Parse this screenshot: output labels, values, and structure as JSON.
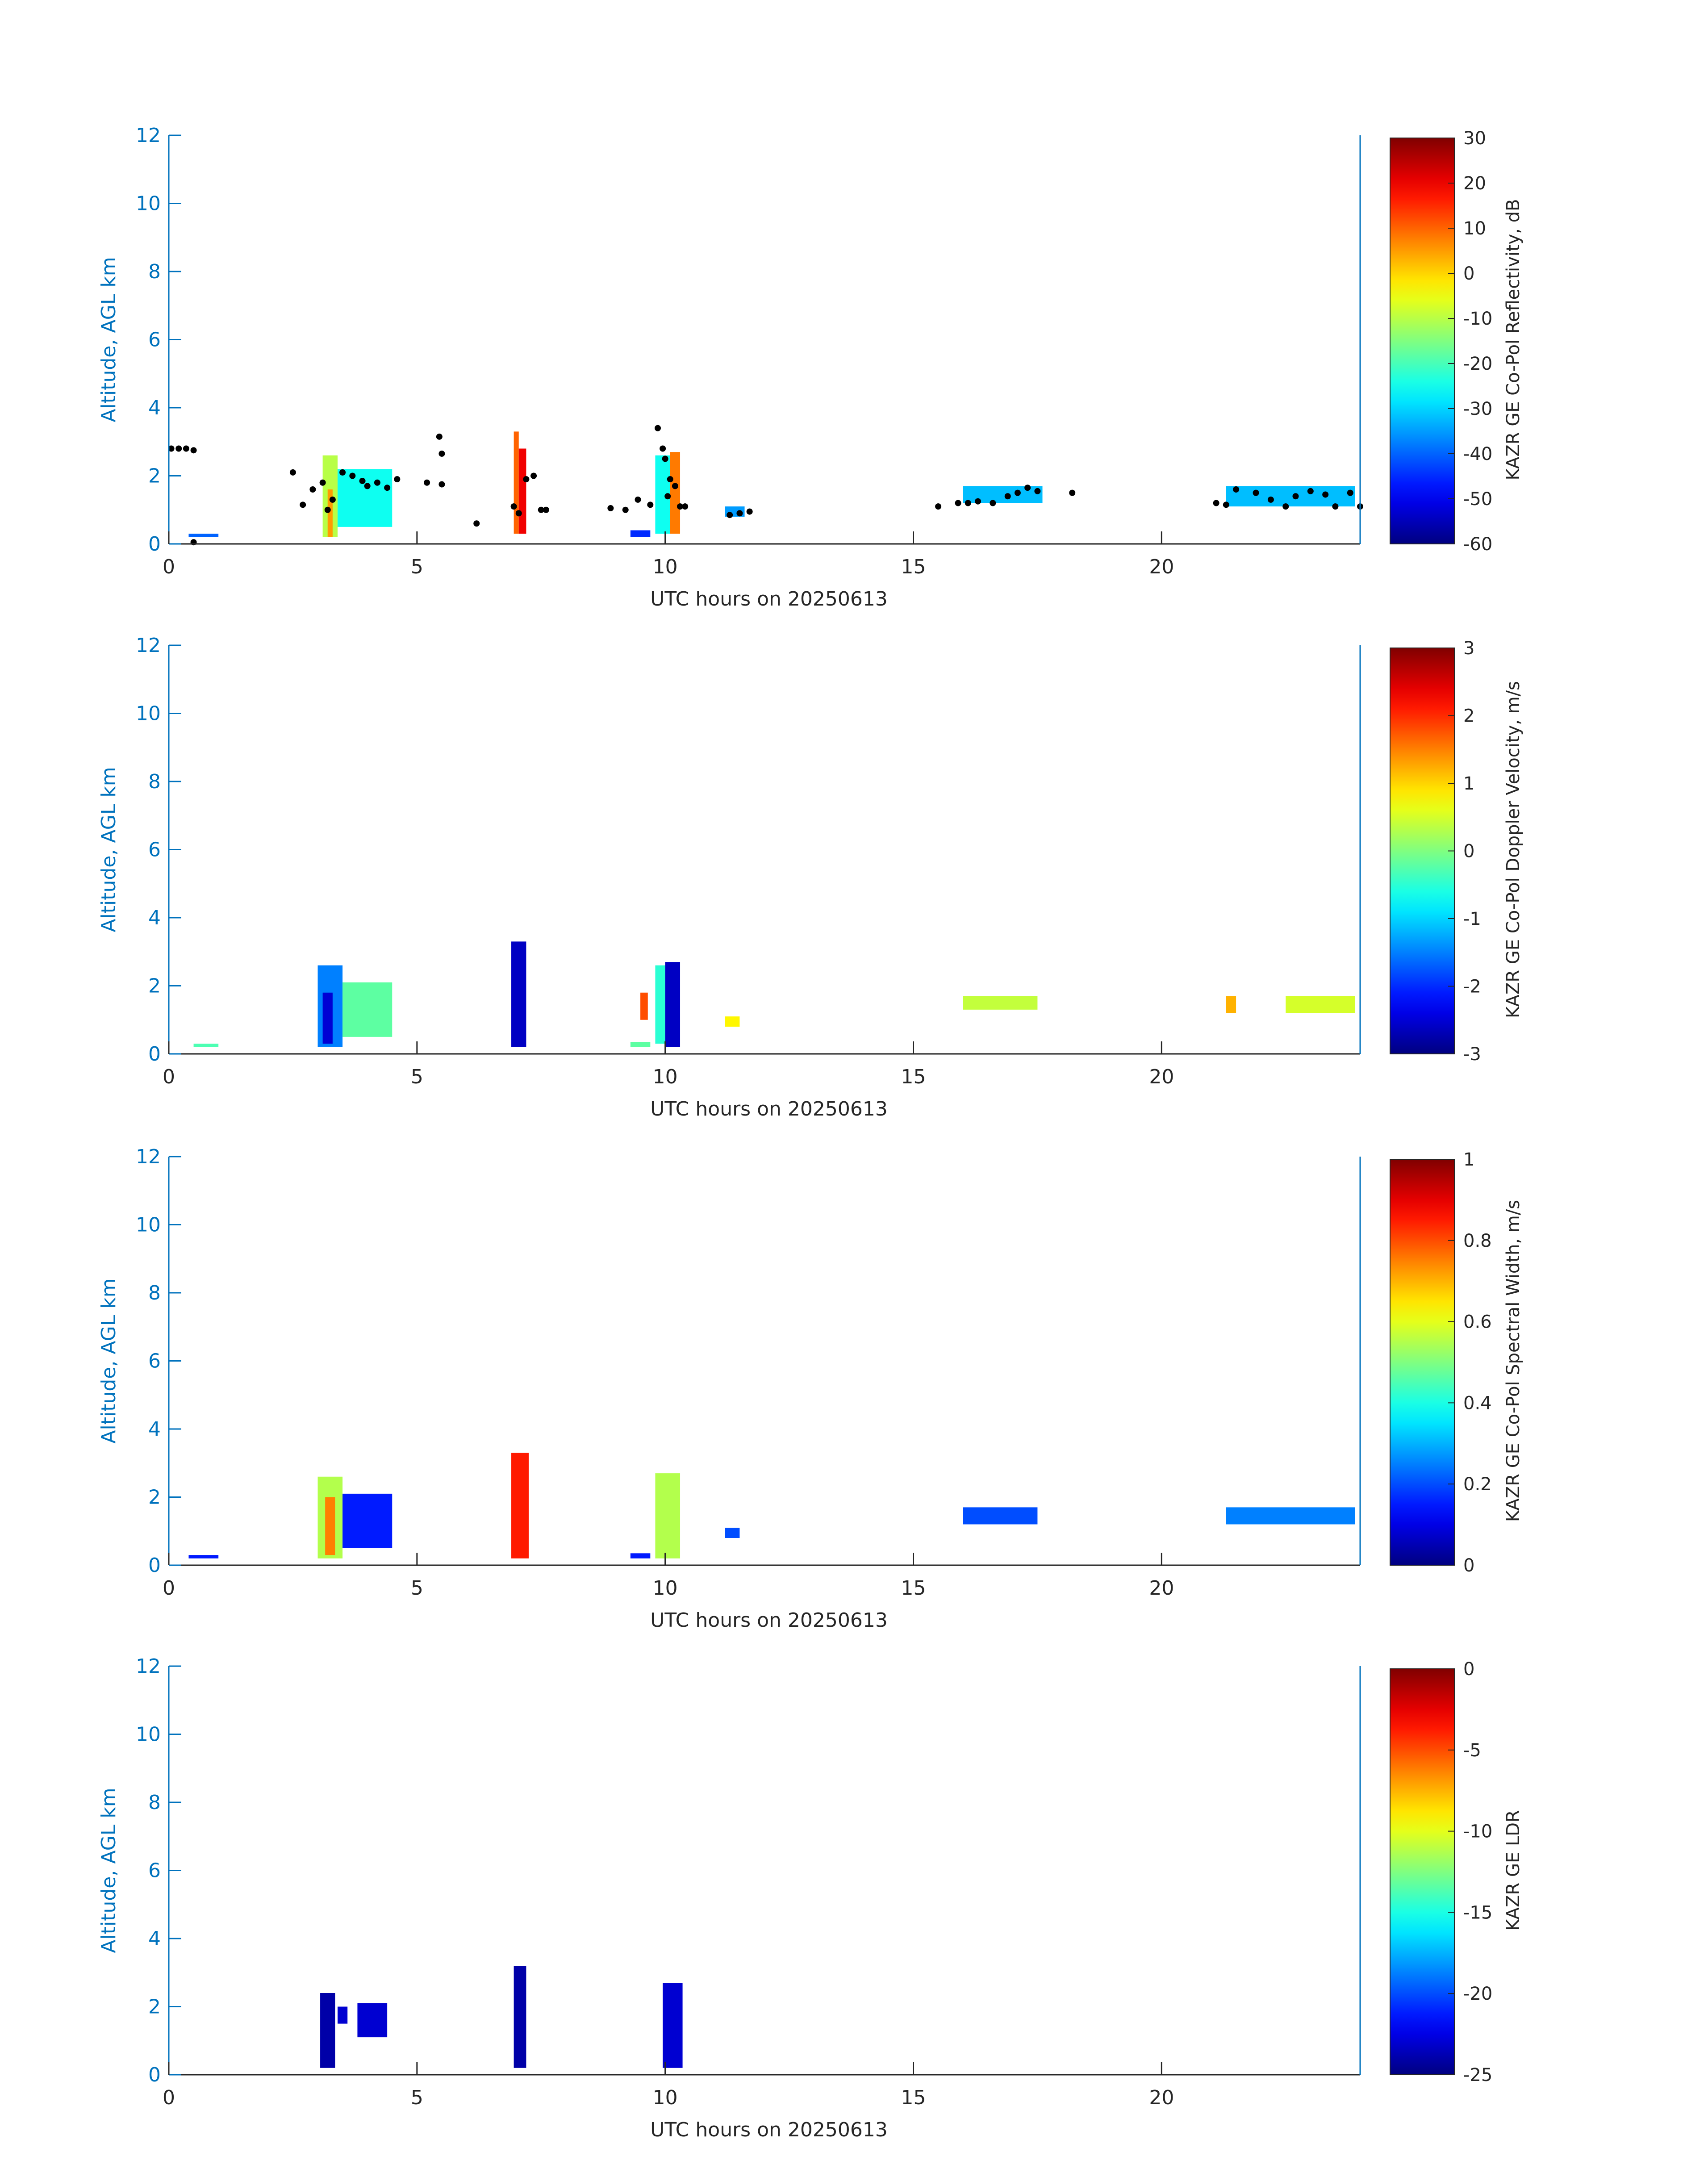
{
  "colors": {
    "axis": "#0072BD",
    "text": "#262626",
    "cloud_mask_points": "#000000"
  },
  "chart_data": [
    {
      "type": "heatmap",
      "xlabel": "UTC hours on 20250613",
      "ylabel": "Altitude, AGL km",
      "xlim": [
        0,
        24
      ],
      "ylim": [
        0,
        12
      ],
      "xticks": [
        0,
        5,
        10,
        15,
        20
      ],
      "yticks": [
        0,
        2,
        4,
        6,
        8,
        10,
        12
      ],
      "colorbar": {
        "label": "KAZR GE Co-Pol Reflectivity, dB",
        "range": [
          -60,
          30
        ],
        "ticks": [
          30,
          20,
          10,
          0,
          -10,
          -20,
          -30,
          -40,
          -50,
          -60
        ],
        "colormap": "jet"
      },
      "cells": [
        {
          "x0": 3.1,
          "x1": 3.4,
          "y0": 0.2,
          "y1": 2.6,
          "v": -10
        },
        {
          "x0": 3.4,
          "x1": 4.5,
          "y0": 0.5,
          "y1": 2.2,
          "v": -25
        },
        {
          "x0": 3.2,
          "x1": 3.3,
          "y0": 0.2,
          "y1": 1.6,
          "v": 5
        },
        {
          "x0": 6.95,
          "x1": 7.05,
          "y0": 0.3,
          "y1": 3.3,
          "v": 10
        },
        {
          "x0": 7.05,
          "x1": 7.2,
          "y0": 0.3,
          "y1": 2.8,
          "v": 20
        },
        {
          "x0": 9.8,
          "x1": 10.1,
          "y0": 0.3,
          "y1": 2.6,
          "v": -25
        },
        {
          "x0": 10.1,
          "x1": 10.3,
          "y0": 0.3,
          "y1": 2.7,
          "v": 8
        },
        {
          "x0": 9.3,
          "x1": 9.7,
          "y0": 0.2,
          "y1": 0.4,
          "v": -45
        },
        {
          "x0": 11.2,
          "x1": 11.6,
          "y0": 0.8,
          "y1": 1.1,
          "v": -35
        },
        {
          "x0": 0.4,
          "x1": 1.0,
          "y0": 0.2,
          "y1": 0.3,
          "v": -40
        },
        {
          "x0": 16.0,
          "x1": 17.6,
          "y0": 1.2,
          "y1": 1.7,
          "v": -32
        },
        {
          "x0": 21.3,
          "x1": 23.9,
          "y0": 1.1,
          "y1": 1.7,
          "v": -32
        }
      ],
      "points": [
        [
          0.05,
          2.8
        ],
        [
          0.2,
          2.8
        ],
        [
          0.35,
          2.8
        ],
        [
          0.5,
          2.75
        ],
        [
          0.5,
          0.05
        ],
        [
          2.5,
          2.1
        ],
        [
          2.7,
          1.15
        ],
        [
          2.9,
          1.6
        ],
        [
          3.1,
          1.8
        ],
        [
          3.2,
          1.0
        ],
        [
          3.3,
          1.3
        ],
        [
          3.5,
          2.1
        ],
        [
          3.7,
          2.0
        ],
        [
          3.9,
          1.85
        ],
        [
          4.0,
          1.7
        ],
        [
          4.2,
          1.8
        ],
        [
          4.4,
          1.65
        ],
        [
          4.6,
          1.9
        ],
        [
          5.2,
          1.8
        ],
        [
          5.5,
          1.75
        ],
        [
          5.45,
          3.15
        ],
        [
          5.5,
          2.65
        ],
        [
          6.2,
          0.6
        ],
        [
          6.95,
          1.1
        ],
        [
          7.05,
          0.9
        ],
        [
          7.2,
          1.9
        ],
        [
          7.35,
          2.0
        ],
        [
          7.5,
          1.0
        ],
        [
          7.6,
          1.0
        ],
        [
          8.9,
          1.05
        ],
        [
          9.2,
          1.0
        ],
        [
          9.45,
          1.3
        ],
        [
          9.7,
          1.15
        ],
        [
          9.85,
          3.4
        ],
        [
          9.95,
          2.8
        ],
        [
          10.0,
          2.5
        ],
        [
          10.05,
          1.4
        ],
        [
          10.1,
          1.9
        ],
        [
          10.2,
          1.7
        ],
        [
          10.3,
          1.1
        ],
        [
          10.4,
          1.1
        ],
        [
          11.3,
          0.85
        ],
        [
          11.5,
          0.9
        ],
        [
          11.7,
          0.95
        ],
        [
          15.5,
          1.1
        ],
        [
          15.9,
          1.2
        ],
        [
          16.1,
          1.2
        ],
        [
          16.3,
          1.25
        ],
        [
          16.6,
          1.2
        ],
        [
          16.9,
          1.4
        ],
        [
          17.1,
          1.5
        ],
        [
          17.3,
          1.65
        ],
        [
          17.5,
          1.55
        ],
        [
          18.2,
          1.5
        ],
        [
          21.1,
          1.2
        ],
        [
          21.3,
          1.15
        ],
        [
          21.5,
          1.6
        ],
        [
          21.9,
          1.5
        ],
        [
          22.2,
          1.3
        ],
        [
          22.5,
          1.1
        ],
        [
          22.7,
          1.4
        ],
        [
          23.0,
          1.55
        ],
        [
          23.3,
          1.45
        ],
        [
          23.5,
          1.1
        ],
        [
          23.8,
          1.5
        ],
        [
          24.0,
          1.1
        ]
      ]
    },
    {
      "type": "heatmap",
      "xlabel": "UTC hours on 20250613",
      "ylabel": "Altitude, AGL km",
      "xlim": [
        0,
        24
      ],
      "ylim": [
        0,
        12
      ],
      "xticks": [
        0,
        5,
        10,
        15,
        20
      ],
      "yticks": [
        0,
        2,
        4,
        6,
        8,
        10,
        12
      ],
      "colorbar": {
        "label": "KAZR GE Co-Pol Doppler Velocity, m/s",
        "range": [
          -3,
          3
        ],
        "ticks": [
          3,
          2,
          1,
          0,
          -1,
          -2,
          -3
        ],
        "colormap": "jet"
      },
      "cells": [
        {
          "x0": 3.0,
          "x1": 3.5,
          "y0": 0.2,
          "y1": 2.6,
          "v": -1.5
        },
        {
          "x0": 3.1,
          "x1": 3.3,
          "y0": 0.3,
          "y1": 1.8,
          "v": -2.5
        },
        {
          "x0": 3.5,
          "x1": 4.5,
          "y0": 0.5,
          "y1": 2.1,
          "v": -0.2
        },
        {
          "x0": 6.9,
          "x1": 7.2,
          "y0": 0.2,
          "y1": 3.3,
          "v": -2.6
        },
        {
          "x0": 9.5,
          "x1": 9.65,
          "y0": 1.0,
          "y1": 1.8,
          "v": 1.8
        },
        {
          "x0": 9.8,
          "x1": 10.0,
          "y0": 0.3,
          "y1": 2.6,
          "v": -0.5
        },
        {
          "x0": 10.0,
          "x1": 10.3,
          "y0": 0.2,
          "y1": 2.7,
          "v": -2.6
        },
        {
          "x0": 9.3,
          "x1": 9.7,
          "y0": 0.2,
          "y1": 0.35,
          "v": -0.2
        },
        {
          "x0": 11.2,
          "x1": 11.5,
          "y0": 0.8,
          "y1": 1.1,
          "v": 0.8
        },
        {
          "x0": 0.5,
          "x1": 1.0,
          "y0": 0.2,
          "y1": 0.3,
          "v": -0.3
        },
        {
          "x0": 16.0,
          "x1": 17.5,
          "y0": 1.3,
          "y1": 1.7,
          "v": 0.4
        },
        {
          "x0": 21.3,
          "x1": 21.5,
          "y0": 1.2,
          "y1": 1.7,
          "v": 1.2
        },
        {
          "x0": 22.5,
          "x1": 23.9,
          "y0": 1.2,
          "y1": 1.7,
          "v": 0.5
        }
      ]
    },
    {
      "type": "heatmap",
      "xlabel": "UTC hours on 20250613",
      "ylabel": "Altitude, AGL km",
      "xlim": [
        0,
        24
      ],
      "ylim": [
        0,
        12
      ],
      "xticks": [
        0,
        5,
        10,
        15,
        20
      ],
      "yticks": [
        0,
        2,
        4,
        6,
        8,
        10,
        12
      ],
      "colorbar": {
        "label": "KAZR GE Co-Pol Spectral Width, m/s",
        "range": [
          0,
          1
        ],
        "ticks": [
          1,
          0.8,
          0.6,
          0.4,
          0.2,
          0
        ],
        "colormap": "jet"
      },
      "cells": [
        {
          "x0": 3.0,
          "x1": 3.5,
          "y0": 0.2,
          "y1": 2.6,
          "v": 0.55
        },
        {
          "x0": 3.15,
          "x1": 3.35,
          "y0": 0.3,
          "y1": 2.0,
          "v": 0.75
        },
        {
          "x0": 3.5,
          "x1": 4.5,
          "y0": 0.5,
          "y1": 2.1,
          "v": 0.15
        },
        {
          "x0": 6.9,
          "x1": 7.25,
          "y0": 0.2,
          "y1": 3.3,
          "v": 0.85
        },
        {
          "x0": 9.8,
          "x1": 10.3,
          "y0": 0.2,
          "y1": 2.7,
          "v": 0.55
        },
        {
          "x0": 9.3,
          "x1": 9.7,
          "y0": 0.2,
          "y1": 0.35,
          "v": 0.15
        },
        {
          "x0": 11.2,
          "x1": 11.5,
          "y0": 0.8,
          "y1": 1.1,
          "v": 0.2
        },
        {
          "x0": 0.4,
          "x1": 1.0,
          "y0": 0.2,
          "y1": 0.3,
          "v": 0.15
        },
        {
          "x0": 16.0,
          "x1": 17.5,
          "y0": 1.2,
          "y1": 1.7,
          "v": 0.2
        },
        {
          "x0": 21.3,
          "x1": 23.9,
          "y0": 1.2,
          "y1": 1.7,
          "v": 0.25
        }
      ]
    },
    {
      "type": "heatmap",
      "xlabel": "UTC hours on 20250613",
      "ylabel": "Altitude, AGL km",
      "xlim": [
        0,
        24
      ],
      "ylim": [
        0,
        12
      ],
      "xticks": [
        0,
        5,
        10,
        15,
        20
      ],
      "yticks": [
        0,
        2,
        4,
        6,
        8,
        10,
        12
      ],
      "colorbar": {
        "label": "KAZR GE LDR",
        "range": [
          -25,
          0
        ],
        "ticks": [
          0,
          -5,
          -10,
          -15,
          -20,
          -25
        ],
        "colormap": "jet"
      },
      "cells": [
        {
          "x0": 3.05,
          "x1": 3.35,
          "y0": 0.2,
          "y1": 2.4,
          "v": -24
        },
        {
          "x0": 3.4,
          "x1": 3.6,
          "y0": 1.5,
          "y1": 2.0,
          "v": -23
        },
        {
          "x0": 3.8,
          "x1": 4.4,
          "y0": 1.1,
          "y1": 2.1,
          "v": -23
        },
        {
          "x0": 6.95,
          "x1": 7.2,
          "y0": 0.2,
          "y1": 3.2,
          "v": -24
        },
        {
          "x0": 9.95,
          "x1": 10.35,
          "y0": 0.2,
          "y1": 2.7,
          "v": -23
        }
      ]
    }
  ]
}
